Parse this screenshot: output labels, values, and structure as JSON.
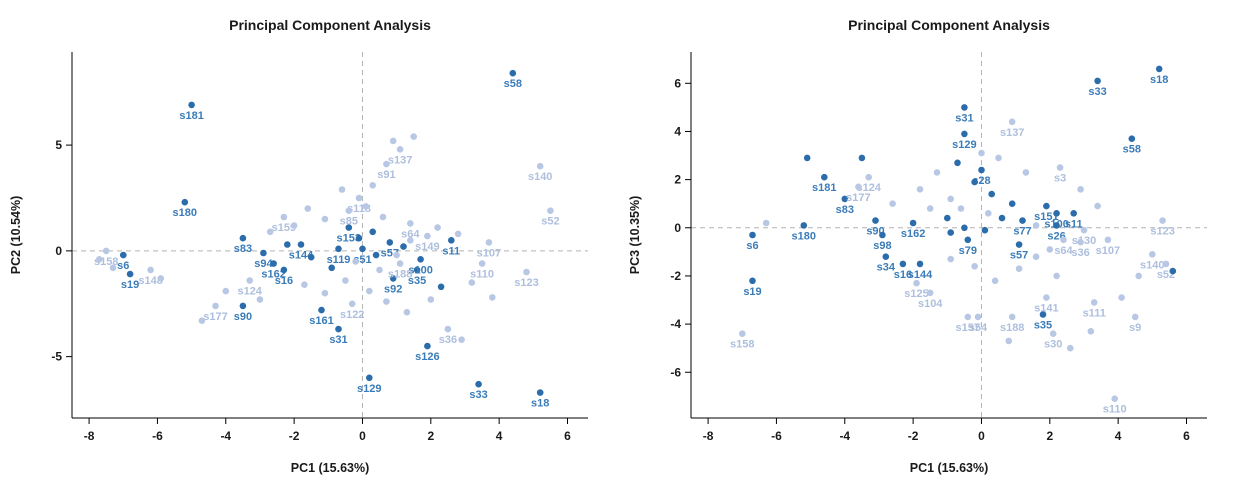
{
  "colors": {
    "dark_point": "#2b6cab",
    "light_point": "#b8c7e3",
    "dark_label": "#3b7cb8",
    "light_label": "#aebfde",
    "axis": "#000000",
    "zero_line": "#b3b3b3"
  },
  "point_format": [
    "x",
    "y",
    "shade",
    "label"
  ],
  "chart_data": [
    {
      "type": "scatter",
      "title": "Principal Component Analysis",
      "xlabel": "PC1 (15.63%)",
      "ylabel": "PC2 (10.54%)",
      "xlim": [
        -8.5,
        6.6
      ],
      "ylim": [
        -7.9,
        9.4
      ],
      "xticks": [
        -8,
        -6,
        -4,
        -2,
        0,
        2,
        4,
        6
      ],
      "yticks": [
        -5,
        0,
        5
      ],
      "zero_lines": true,
      "grid": false,
      "legend": "none",
      "points": [
        [
          4.4,
          8.4,
          "dark",
          "s58"
        ],
        [
          -5.0,
          6.9,
          "dark",
          "s181"
        ],
        [
          -5.2,
          2.3,
          "dark",
          "s180"
        ],
        [
          -7.0,
          -0.2,
          "dark",
          "s6"
        ],
        [
          -6.8,
          -1.1,
          "dark",
          "s19"
        ],
        [
          -3.5,
          0.6,
          "dark",
          "s83"
        ],
        [
          -2.9,
          -0.1,
          "dark",
          "s94"
        ],
        [
          -3.5,
          -2.6,
          "dark",
          "s90"
        ],
        [
          -2.6,
          -0.6,
          "dark",
          "s162"
        ],
        [
          -2.3,
          -0.9,
          "dark",
          "s16"
        ],
        [
          -1.8,
          0.3,
          "dark",
          "s144"
        ],
        [
          -1.2,
          -2.8,
          "dark",
          "s161"
        ],
        [
          -0.7,
          -3.7,
          "dark",
          "s31"
        ],
        [
          0.2,
          -6.0,
          "dark",
          "s129"
        ],
        [
          1.9,
          -4.5,
          "dark",
          "s126"
        ],
        [
          3.4,
          -6.3,
          "dark",
          "s33"
        ],
        [
          5.2,
          -6.7,
          "dark",
          "s18"
        ],
        [
          1.6,
          -0.9,
          "dark",
          "s35"
        ],
        [
          1.7,
          -0.4,
          "dark",
          "s100"
        ],
        [
          2.6,
          0.5,
          "dark",
          "s11"
        ],
        [
          0.8,
          0.4,
          "dark",
          "s57"
        ],
        [
          -0.4,
          1.1,
          "dark",
          "s153"
        ],
        [
          -0.7,
          0.1,
          "dark",
          "s119"
        ],
        [
          0.0,
          0.1,
          "dark",
          "s51"
        ],
        [
          0.9,
          -1.3,
          "dark",
          "s92"
        ],
        [
          -7.5,
          0.0,
          "light",
          "s158"
        ],
        [
          -6.2,
          -0.9,
          "light",
          "s148"
        ],
        [
          -4.3,
          -2.6,
          "light",
          "s177"
        ],
        [
          -3.3,
          -1.4,
          "light",
          "s124"
        ],
        [
          -2.3,
          1.6,
          "light",
          "s159"
        ],
        [
          -0.1,
          2.5,
          "light",
          "s118"
        ],
        [
          -0.4,
          1.9,
          "light",
          "s85"
        ],
        [
          1.1,
          4.8,
          "light",
          "s137"
        ],
        [
          0.7,
          4.1,
          "light",
          "s91"
        ],
        [
          5.2,
          4.0,
          "light",
          "s140"
        ],
        [
          5.5,
          1.9,
          "light",
          "s52"
        ],
        [
          3.7,
          0.4,
          "light",
          "s107"
        ],
        [
          3.5,
          -0.6,
          "light",
          "s110"
        ],
        [
          4.8,
          -1.0,
          "light",
          "s123"
        ],
        [
          1.4,
          1.3,
          "light",
          "s64"
        ],
        [
          1.1,
          -0.6,
          "light",
          "s188"
        ],
        [
          2.5,
          -3.7,
          "light",
          "s36"
        ],
        [
          -0.3,
          -2.5,
          "light",
          "s122"
        ],
        [
          1.9,
          0.7,
          "light",
          "s149"
        ],
        [
          -2.2,
          0.3,
          "dark",
          ""
        ],
        [
          -1.5,
          -0.3,
          "dark",
          ""
        ],
        [
          -0.9,
          -0.8,
          "dark",
          ""
        ],
        [
          -0.1,
          0.6,
          "dark",
          ""
        ],
        [
          0.4,
          -0.2,
          "dark",
          ""
        ],
        [
          1.2,
          0.2,
          "dark",
          ""
        ],
        [
          0.3,
          0.9,
          "dark",
          ""
        ],
        [
          2.3,
          -1.7,
          "dark",
          ""
        ],
        [
          -7.7,
          -0.4,
          "light",
          ""
        ],
        [
          -7.3,
          -0.8,
          "light",
          ""
        ],
        [
          -5.9,
          -1.3,
          "light",
          ""
        ],
        [
          -4.7,
          -3.3,
          "light",
          ""
        ],
        [
          -4.0,
          -1.9,
          "light",
          ""
        ],
        [
          -3.0,
          -2.3,
          "light",
          ""
        ],
        [
          -2.7,
          0.9,
          "light",
          ""
        ],
        [
          -2.0,
          1.2,
          "light",
          ""
        ],
        [
          -1.6,
          2.0,
          "light",
          ""
        ],
        [
          -1.1,
          1.5,
          "light",
          ""
        ],
        [
          -0.6,
          2.9,
          "light",
          ""
        ],
        [
          0.1,
          2.1,
          "light",
          ""
        ],
        [
          0.6,
          1.6,
          "light",
          ""
        ],
        [
          0.9,
          5.2,
          "light",
          ""
        ],
        [
          1.5,
          5.4,
          "light",
          ""
        ],
        [
          2.2,
          1.1,
          "light",
          ""
        ],
        [
          2.8,
          0.8,
          "light",
          ""
        ],
        [
          -1.7,
          -1.6,
          "light",
          ""
        ],
        [
          -1.1,
          -2.0,
          "light",
          ""
        ],
        [
          -0.5,
          -1.4,
          "light",
          ""
        ],
        [
          0.2,
          -1.9,
          "light",
          ""
        ],
        [
          0.7,
          -2.4,
          "light",
          ""
        ],
        [
          1.3,
          -2.9,
          "light",
          ""
        ],
        [
          2.0,
          -2.3,
          "light",
          ""
        ],
        [
          2.9,
          -4.2,
          "light",
          ""
        ],
        [
          3.2,
          -1.5,
          "light",
          ""
        ],
        [
          3.8,
          -2.2,
          "light",
          ""
        ],
        [
          -0.2,
          -0.5,
          "light",
          ""
        ],
        [
          0.5,
          -0.9,
          "light",
          ""
        ],
        [
          1.0,
          -0.2,
          "light",
          ""
        ],
        [
          1.4,
          0.5,
          "light",
          ""
        ],
        [
          0.3,
          3.1,
          "light",
          ""
        ]
      ]
    },
    {
      "type": "scatter",
      "title": "Principal Component Analysis",
      "xlabel": "PC1 (15.63%)",
      "ylabel": "PC3 (10.35%)",
      "xlim": [
        -8.5,
        6.6
      ],
      "ylim": [
        -7.9,
        7.3
      ],
      "xticks": [
        -8,
        -6,
        -4,
        -2,
        0,
        2,
        4,
        6
      ],
      "yticks": [
        -6,
        -4,
        -2,
        0,
        2,
        4,
        6
      ],
      "zero_lines": true,
      "grid": false,
      "legend": "none",
      "points": [
        [
          5.2,
          6.6,
          "dark",
          "s18"
        ],
        [
          3.4,
          6.1,
          "dark",
          "s33"
        ],
        [
          4.4,
          3.7,
          "dark",
          "s58"
        ],
        [
          -0.5,
          5.0,
          "dark",
          "s31"
        ],
        [
          -0.5,
          3.9,
          "dark",
          "s129"
        ],
        [
          0.0,
          2.4,
          "dark",
          "s28"
        ],
        [
          -4.6,
          2.1,
          "dark",
          "s181"
        ],
        [
          -4.0,
          1.2,
          "dark",
          "s83"
        ],
        [
          -5.2,
          0.1,
          "dark",
          "s180"
        ],
        [
          -6.7,
          -0.3,
          "dark",
          "s6"
        ],
        [
          -6.7,
          -2.2,
          "dark",
          "s19"
        ],
        [
          -3.1,
          0.3,
          "dark",
          "s90"
        ],
        [
          -2.9,
          -0.3,
          "dark",
          "s98"
        ],
        [
          -2.0,
          0.2,
          "dark",
          "s162"
        ],
        [
          -2.8,
          -1.2,
          "dark",
          "s34"
        ],
        [
          -2.3,
          -1.5,
          "dark",
          "s16"
        ],
        [
          -1.8,
          -1.5,
          "dark",
          "s144"
        ],
        [
          -0.4,
          -0.5,
          "dark",
          "s79"
        ],
        [
          1.1,
          -0.7,
          "dark",
          "s57"
        ],
        [
          1.2,
          0.3,
          "dark",
          "s77"
        ],
        [
          1.9,
          0.9,
          "dark",
          "s151"
        ],
        [
          2.2,
          0.6,
          "dark",
          "s100"
        ],
        [
          2.7,
          0.6,
          "dark",
          "s11"
        ],
        [
          2.2,
          0.1,
          "dark",
          "s26"
        ],
        [
          1.8,
          -3.6,
          "dark",
          "s35"
        ],
        [
          0.9,
          4.4,
          "light",
          "s137"
        ],
        [
          -3.3,
          2.1,
          "light",
          "s124"
        ],
        [
          -3.6,
          1.7,
          "light",
          "s177"
        ],
        [
          2.3,
          2.5,
          "light",
          "s3"
        ],
        [
          5.3,
          0.3,
          "light",
          "s123"
        ],
        [
          3.0,
          -0.1,
          "light",
          "s130"
        ],
        [
          3.7,
          -0.5,
          "light",
          "s107"
        ],
        [
          5.0,
          -1.1,
          "light",
          "s140"
        ],
        [
          5.4,
          -1.5,
          "light",
          "s52"
        ],
        [
          -1.9,
          -2.3,
          "light",
          "s125"
        ],
        [
          -1.5,
          -2.7,
          "light",
          "s104"
        ],
        [
          -0.4,
          -3.7,
          "light",
          "s157"
        ],
        [
          -0.1,
          -3.7,
          "light",
          "s54"
        ],
        [
          0.9,
          -3.7,
          "light",
          "s188"
        ],
        [
          1.9,
          -2.9,
          "light",
          "s141"
        ],
        [
          3.3,
          -3.1,
          "light",
          "s111"
        ],
        [
          4.5,
          -3.7,
          "light",
          "s9"
        ],
        [
          2.1,
          -4.4,
          "light",
          "s30"
        ],
        [
          -7.0,
          -4.4,
          "light",
          "s158"
        ],
        [
          3.9,
          -7.1,
          "light",
          "s110"
        ],
        [
          2.4,
          -0.5,
          "light",
          "s64"
        ],
        [
          2.9,
          -0.6,
          "light",
          "s36"
        ],
        [
          -5.1,
          2.9,
          "dark",
          ""
        ],
        [
          -3.5,
          2.9,
          "dark",
          ""
        ],
        [
          -0.7,
          2.7,
          "dark",
          ""
        ],
        [
          -0.2,
          1.9,
          "dark",
          ""
        ],
        [
          0.3,
          1.4,
          "dark",
          ""
        ],
        [
          -1.0,
          0.4,
          "dark",
          ""
        ],
        [
          -0.5,
          0.0,
          "dark",
          ""
        ],
        [
          0.1,
          -0.1,
          "dark",
          ""
        ],
        [
          0.6,
          0.4,
          "dark",
          ""
        ],
        [
          5.6,
          -1.8,
          "dark",
          ""
        ],
        [
          -0.9,
          -0.2,
          "dark",
          ""
        ],
        [
          0.9,
          1.0,
          "dark",
          ""
        ],
        [
          -6.3,
          0.2,
          "light",
          ""
        ],
        [
          -2.6,
          1.0,
          "light",
          ""
        ],
        [
          -1.8,
          1.6,
          "light",
          ""
        ],
        [
          -1.3,
          2.3,
          "light",
          ""
        ],
        [
          -0.9,
          1.2,
          "light",
          ""
        ],
        [
          0.5,
          2.9,
          "light",
          ""
        ],
        [
          1.3,
          2.3,
          "light",
          ""
        ],
        [
          2.9,
          1.6,
          "light",
          ""
        ],
        [
          -0.9,
          -1.3,
          "light",
          ""
        ],
        [
          -0.2,
          -1.6,
          "light",
          ""
        ],
        [
          0.4,
          -2.2,
          "light",
          ""
        ],
        [
          1.1,
          -1.7,
          "light",
          ""
        ],
        [
          1.6,
          -1.2,
          "light",
          ""
        ],
        [
          2.2,
          -2.0,
          "light",
          ""
        ],
        [
          2.6,
          -5.0,
          "light",
          ""
        ],
        [
          3.2,
          -4.3,
          "light",
          ""
        ],
        [
          4.6,
          -2.0,
          "light",
          ""
        ],
        [
          0.8,
          -4.7,
          "light",
          ""
        ],
        [
          -1.5,
          0.8,
          "light",
          ""
        ],
        [
          -0.6,
          0.8,
          "light",
          ""
        ],
        [
          0.2,
          0.6,
          "light",
          ""
        ],
        [
          1.6,
          0.1,
          "light",
          ""
        ],
        [
          2.0,
          -0.9,
          "light",
          ""
        ],
        [
          0.0,
          3.1,
          "light",
          ""
        ],
        [
          3.4,
          0.9,
          "light",
          ""
        ],
        [
          4.1,
          -2.9,
          "light",
          ""
        ]
      ]
    }
  ]
}
